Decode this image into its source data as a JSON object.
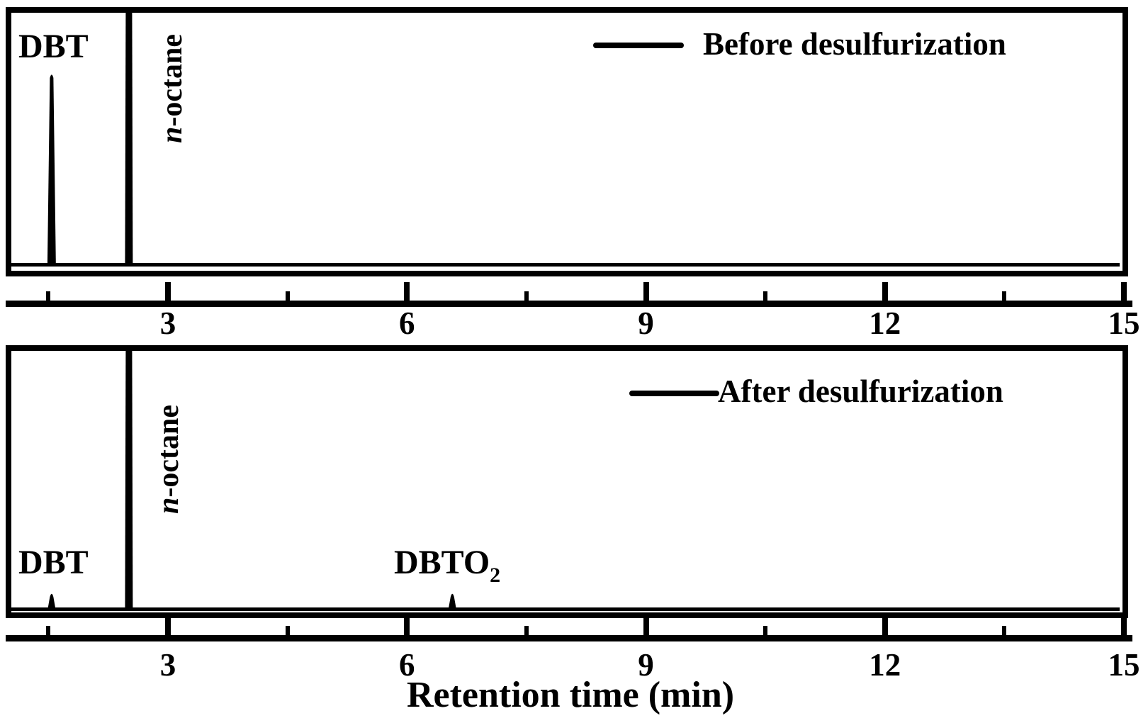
{
  "figure": {
    "background_color": "#ffffff",
    "ink_color": "#000000",
    "panels": [
      {
        "legend_label": "Before desulfurization",
        "dbt_label": "DBT",
        "octane_label_prefix": "n",
        "octane_label_suffix": "-octane"
      },
      {
        "legend_label": "After desulfurization",
        "dbt_label": "DBT",
        "octane_label_prefix": "n",
        "octane_label_suffix": "-octane",
        "dbto2_label_base": "DBTO",
        "dbto2_label_sub": "2"
      }
    ],
    "x_axis": {
      "title": "Retention time (min)",
      "major_tick_labels": [
        "3",
        "6",
        "9",
        "12",
        "15"
      ]
    }
  },
  "chart_data": {
    "type": "line",
    "title": "",
    "xlabel": "Retention time (min)",
    "ylabel": "",
    "x_unit": "min",
    "x_range": [
      1.0,
      15.1
    ],
    "x_ticks_major": [
      3,
      6,
      9,
      12,
      15
    ],
    "x_ticks_minor": [
      1.5,
      4.5,
      7.5,
      10.5,
      13.5
    ],
    "grid": false,
    "legend_position": "upper right inside",
    "panels": [
      {
        "name": "Before desulfurization",
        "baseline_intensity": 0,
        "peaks": [
          {
            "compound": "DBT",
            "retention_time_min": 1.54,
            "relative_height": 0.76,
            "clipped_at_top": false
          },
          {
            "compound": "n-octane",
            "retention_time_min": 2.51,
            "relative_height": 1.0,
            "clipped_at_top": true
          }
        ]
      },
      {
        "name": "After desulfurization",
        "baseline_intensity": 0,
        "peaks": [
          {
            "compound": "DBT",
            "retention_time_min": 1.54,
            "relative_height": 0.07,
            "clipped_at_top": false
          },
          {
            "compound": "n-octane",
            "retention_time_min": 2.51,
            "relative_height": 1.0,
            "clipped_at_top": true
          },
          {
            "compound": "DBTO2",
            "retention_time_min": 6.57,
            "relative_height": 0.07,
            "clipped_at_top": false
          }
        ]
      }
    ]
  }
}
